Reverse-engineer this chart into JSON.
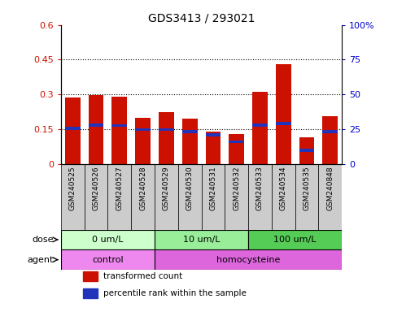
{
  "title": "GDS3413 / 293021",
  "samples": [
    "GSM240525",
    "GSM240526",
    "GSM240527",
    "GSM240528",
    "GSM240529",
    "GSM240530",
    "GSM240531",
    "GSM240532",
    "GSM240533",
    "GSM240534",
    "GSM240535",
    "GSM240848"
  ],
  "transformed_count": [
    0.285,
    0.298,
    0.29,
    0.2,
    0.225,
    0.195,
    0.14,
    0.13,
    0.31,
    0.43,
    0.115,
    0.205
  ],
  "percentile_rank": [
    0.152,
    0.168,
    0.165,
    0.148,
    0.148,
    0.138,
    0.125,
    0.095,
    0.168,
    0.175,
    0.058,
    0.138
  ],
  "bar_color": "#cc1100",
  "blue_color": "#2233bb",
  "ylim_left": [
    0,
    0.6
  ],
  "ylim_right": [
    0,
    100
  ],
  "yticks_left": [
    0,
    0.15,
    0.3,
    0.45,
    0.6
  ],
  "ytick_labels_left": [
    "0",
    "0.15",
    "0.3",
    "0.45",
    "0.6"
  ],
  "yticks_right": [
    0,
    25,
    50,
    75,
    100
  ],
  "ytick_labels_right": [
    "0",
    "25",
    "50",
    "75",
    "100%"
  ],
  "dose_groups": [
    {
      "label": "0 um/L",
      "start": 0,
      "end": 4,
      "color": "#ccffcc"
    },
    {
      "label": "10 um/L",
      "start": 4,
      "end": 8,
      "color": "#99ee99"
    },
    {
      "label": "100 um/L",
      "start": 8,
      "end": 12,
      "color": "#55cc55"
    }
  ],
  "agent_groups": [
    {
      "label": "control",
      "start": 0,
      "end": 4,
      "color": "#ee88ee"
    },
    {
      "label": "homocysteine",
      "start": 4,
      "end": 12,
      "color": "#dd66dd"
    }
  ],
  "dose_label": "dose",
  "agent_label": "agent",
  "legend_items": [
    {
      "label": "transformed count",
      "color": "#cc1100"
    },
    {
      "label": "percentile rank within the sample",
      "color": "#2233bb"
    }
  ],
  "bg_color": "#ffffff",
  "xtick_bg_color": "#cccccc",
  "bar_width": 0.65,
  "tick_label_color_left": "#cc1100",
  "tick_label_color_right": "#0000cc"
}
